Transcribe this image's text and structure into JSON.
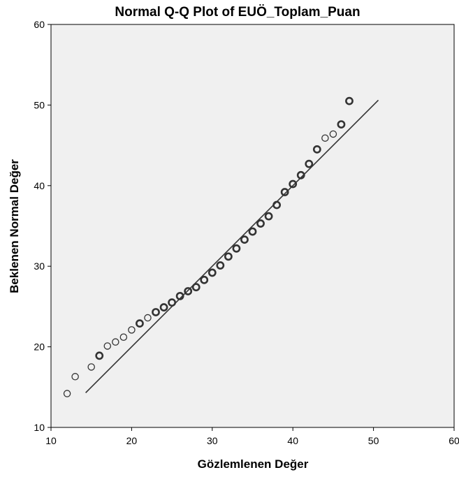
{
  "chart_data": {
    "type": "scatter",
    "title": "Normal Q-Q Plot of EUÖ_Toplam_Puan",
    "xlabel": "Gözlemlenen Değer",
    "ylabel": "Beklenen Normal Değer",
    "xlim": [
      10,
      60
    ],
    "ylim": [
      10,
      60
    ],
    "x_ticks": [
      "10",
      "20",
      "30",
      "40",
      "50",
      "60"
    ],
    "y_ticks": [
      "10",
      "20",
      "30",
      "40",
      "50",
      "60"
    ],
    "grid": false,
    "plot_background": "#f0f0f0",
    "marker_color": "#333333",
    "line_color": "#333333",
    "reference_line": {
      "x": [
        14.3,
        50.6
      ],
      "y": [
        14.3,
        50.6
      ]
    },
    "points": [
      {
        "x": 12,
        "y": 14.2,
        "w": 1
      },
      {
        "x": 13,
        "y": 16.3,
        "w": 1
      },
      {
        "x": 15,
        "y": 17.5,
        "w": 1
      },
      {
        "x": 16,
        "y": 18.9,
        "w": 2
      },
      {
        "x": 17,
        "y": 20.1,
        "w": 1
      },
      {
        "x": 18,
        "y": 20.6,
        "w": 1
      },
      {
        "x": 19,
        "y": 21.2,
        "w": 1
      },
      {
        "x": 20,
        "y": 22.1,
        "w": 1
      },
      {
        "x": 21,
        "y": 22.9,
        "w": 2
      },
      {
        "x": 22,
        "y": 23.6,
        "w": 1
      },
      {
        "x": 23,
        "y": 24.3,
        "w": 2
      },
      {
        "x": 24,
        "y": 24.9,
        "w": 2
      },
      {
        "x": 25,
        "y": 25.5,
        "w": 2
      },
      {
        "x": 26,
        "y": 26.3,
        "w": 2
      },
      {
        "x": 27,
        "y": 26.9,
        "w": 2
      },
      {
        "x": 28,
        "y": 27.4,
        "w": 2
      },
      {
        "x": 29,
        "y": 28.3,
        "w": 2
      },
      {
        "x": 30,
        "y": 29.2,
        "w": 2
      },
      {
        "x": 31,
        "y": 30.1,
        "w": 2
      },
      {
        "x": 32,
        "y": 31.2,
        "w": 2
      },
      {
        "x": 33,
        "y": 32.2,
        "w": 2
      },
      {
        "x": 34,
        "y": 33.3,
        "w": 2
      },
      {
        "x": 35,
        "y": 34.3,
        "w": 2
      },
      {
        "x": 36,
        "y": 35.3,
        "w": 2
      },
      {
        "x": 37,
        "y": 36.2,
        "w": 2
      },
      {
        "x": 38,
        "y": 37.6,
        "w": 2
      },
      {
        "x": 39,
        "y": 39.2,
        "w": 2
      },
      {
        "x": 40,
        "y": 40.2,
        "w": 2
      },
      {
        "x": 41,
        "y": 41.3,
        "w": 2
      },
      {
        "x": 42,
        "y": 42.7,
        "w": 2
      },
      {
        "x": 43,
        "y": 44.5,
        "w": 2
      },
      {
        "x": 44,
        "y": 45.9,
        "w": 1
      },
      {
        "x": 45,
        "y": 46.4,
        "w": 1
      },
      {
        "x": 46,
        "y": 47.6,
        "w": 2
      },
      {
        "x": 47,
        "y": 50.5,
        "w": 2
      }
    ]
  }
}
